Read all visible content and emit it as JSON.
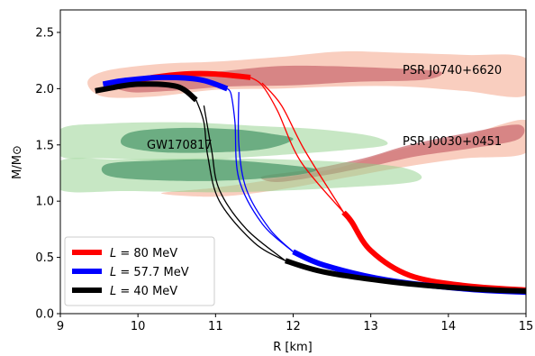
{
  "chart_data": {
    "type": "line",
    "title": "",
    "xlabel": "R [km]",
    "ylabel": "M/M⊙",
    "xlim": [
      9,
      15
    ],
    "ylim": [
      0,
      2.7
    ],
    "xticks": [
      "9",
      "10",
      "11",
      "12",
      "13",
      "14",
      "15"
    ],
    "yticks": [
      "0.0",
      "0.5",
      "1.0",
      "1.5",
      "2.0",
      "2.5"
    ],
    "grid": false,
    "legend_position": "lower-left",
    "annotations": [
      "PSR J0740+6620",
      "PSR J0030+0451",
      "GW170817"
    ],
    "series": [
      {
        "name": "L = 80 MeV",
        "legend_prefix": "L",
        "legend_suffix": " = 80 MeV",
        "color": "#ff0000",
        "thick": [
          [
            15.0,
            0.21
          ],
          [
            14.2,
            0.25
          ],
          [
            13.5,
            0.34
          ],
          [
            13.0,
            0.56
          ],
          [
            12.75,
            0.82
          ],
          [
            12.65,
            0.9
          ]
        ],
        "thin": [
          [
            12.65,
            0.9
          ],
          [
            12.1,
            1.35
          ],
          [
            11.8,
            1.8
          ],
          [
            11.6,
            2.03
          ],
          [
            11.45,
            2.1
          ]
        ],
        "top": [
          [
            11.45,
            2.1
          ],
          [
            11.0,
            2.13
          ],
          [
            10.6,
            2.13
          ],
          [
            10.2,
            2.1
          ],
          [
            9.9,
            2.06
          ]
        ],
        "thin2": [
          [
            11.6,
            2.05
          ],
          [
            11.85,
            1.85
          ],
          [
            12.15,
            1.45
          ],
          [
            12.65,
            0.9
          ]
        ]
      },
      {
        "name": "L = 57.7 MeV",
        "legend_prefix": "L",
        "legend_suffix": " = 57.7 MeV",
        "color": "#0000ff",
        "thick": [
          [
            15.0,
            0.19
          ],
          [
            14.2,
            0.22
          ],
          [
            13.2,
            0.3
          ],
          [
            12.4,
            0.43
          ],
          [
            12.0,
            0.55
          ]
        ],
        "thin": [
          [
            12.0,
            0.55
          ],
          [
            11.6,
            0.8
          ],
          [
            11.3,
            1.2
          ],
          [
            11.25,
            1.7
          ],
          [
            11.2,
            1.95
          ],
          [
            11.15,
            2.0
          ]
        ],
        "top": [
          [
            11.15,
            2.0
          ],
          [
            10.8,
            2.08
          ],
          [
            10.3,
            2.1
          ],
          [
            9.8,
            2.07
          ],
          [
            9.55,
            2.04
          ]
        ],
        "thin2": [
          [
            11.3,
            1.97
          ],
          [
            11.3,
            1.5
          ],
          [
            11.4,
            1.1
          ],
          [
            11.7,
            0.75
          ],
          [
            12.0,
            0.55
          ]
        ]
      },
      {
        "name": "L = 40 MeV",
        "legend_prefix": "L",
        "legend_suffix": " = 40 MeV",
        "color": "#000000",
        "thick": [
          [
            15.0,
            0.2
          ],
          [
            14.3,
            0.22
          ],
          [
            13.3,
            0.28
          ],
          [
            12.4,
            0.37
          ],
          [
            11.9,
            0.47
          ]
        ],
        "thin": [
          [
            11.9,
            0.47
          ],
          [
            11.5,
            0.63
          ],
          [
            11.05,
            1.0
          ],
          [
            10.9,
            1.4
          ],
          [
            10.85,
            1.7
          ],
          [
            10.75,
            1.9
          ]
        ],
        "top": [
          [
            10.75,
            1.9
          ],
          [
            10.5,
            2.02
          ],
          [
            10.0,
            2.04
          ],
          [
            9.6,
            2.0
          ],
          [
            9.45,
            1.98
          ]
        ],
        "thin2": [
          [
            10.85,
            1.85
          ],
          [
            10.95,
            1.45
          ],
          [
            11.05,
            1.1
          ],
          [
            11.4,
            0.75
          ],
          [
            11.9,
            0.47
          ]
        ]
      }
    ],
    "regions": [
      {
        "name": "psr-j0740-outer",
        "color": "#f4a58a",
        "opacity": 0.55,
        "points": [
          [
            9.35,
            2.06
          ],
          [
            9.6,
            2.16
          ],
          [
            10.3,
            2.22
          ],
          [
            11.0,
            2.24
          ],
          [
            11.8,
            2.28
          ],
          [
            12.6,
            2.33
          ],
          [
            13.3,
            2.32
          ],
          [
            14.2,
            2.3
          ],
          [
            15.0,
            2.27
          ],
          [
            15.0,
            1.94
          ],
          [
            14.2,
            1.98
          ],
          [
            13.4,
            2.02
          ],
          [
            12.6,
            2.02
          ],
          [
            11.8,
            2.0
          ],
          [
            11.0,
            1.99
          ],
          [
            10.2,
            1.93
          ],
          [
            9.55,
            1.93
          ]
        ]
      },
      {
        "name": "psr-j0740-inner",
        "color": "#c9676c",
        "opacity": 0.7,
        "points": [
          [
            9.7,
            2.04
          ],
          [
            10.3,
            2.12
          ],
          [
            11.0,
            2.15
          ],
          [
            11.8,
            2.2
          ],
          [
            12.5,
            2.2
          ],
          [
            13.3,
            2.18
          ],
          [
            13.9,
            2.15
          ],
          [
            13.7,
            2.08
          ],
          [
            12.8,
            2.06
          ],
          [
            12.0,
            2.03
          ],
          [
            11.2,
            2.02
          ],
          [
            10.4,
            1.98
          ],
          [
            9.9,
            1.97
          ]
        ]
      },
      {
        "name": "psr-j0030-outer",
        "color": "#f4a58a",
        "opacity": 0.55,
        "points": [
          [
            10.3,
            1.07
          ],
          [
            11.0,
            1.12
          ],
          [
            11.8,
            1.2
          ],
          [
            12.6,
            1.3
          ],
          [
            13.3,
            1.45
          ],
          [
            14.2,
            1.58
          ],
          [
            15.0,
            1.72
          ],
          [
            15.0,
            1.43
          ],
          [
            14.2,
            1.38
          ],
          [
            13.4,
            1.3
          ],
          [
            12.6,
            1.2
          ],
          [
            11.8,
            1.1
          ],
          [
            11.0,
            1.04
          ]
        ]
      },
      {
        "name": "psr-j0030-inner",
        "color": "#c9676c",
        "opacity": 0.7,
        "points": [
          [
            11.6,
            1.22
          ],
          [
            12.2,
            1.28
          ],
          [
            12.9,
            1.38
          ],
          [
            13.5,
            1.5
          ],
          [
            14.2,
            1.6
          ],
          [
            14.9,
            1.68
          ],
          [
            14.9,
            1.55
          ],
          [
            14.3,
            1.47
          ],
          [
            13.6,
            1.4
          ],
          [
            13.0,
            1.31
          ],
          [
            12.4,
            1.23
          ],
          [
            11.8,
            1.17
          ]
        ]
      },
      {
        "name": "gw170817-outer-upper",
        "color": "#8fd08a",
        "opacity": 0.5,
        "points": [
          [
            9.0,
            1.64
          ],
          [
            9.6,
            1.69
          ],
          [
            10.6,
            1.7
          ],
          [
            11.5,
            1.67
          ],
          [
            12.3,
            1.64
          ],
          [
            13.0,
            1.58
          ],
          [
            13.2,
            1.5
          ],
          [
            12.6,
            1.45
          ],
          [
            11.6,
            1.4
          ],
          [
            10.6,
            1.36
          ],
          [
            9.6,
            1.38
          ],
          [
            9.0,
            1.4
          ]
        ]
      },
      {
        "name": "gw170817-outer-lower",
        "color": "#8fd08a",
        "opacity": 0.5,
        "points": [
          [
            9.0,
            1.36
          ],
          [
            9.8,
            1.37
          ],
          [
            11.0,
            1.38
          ],
          [
            12.3,
            1.36
          ],
          [
            13.4,
            1.3
          ],
          [
            13.6,
            1.18
          ],
          [
            12.6,
            1.12
          ],
          [
            11.2,
            1.08
          ],
          [
            9.9,
            1.09
          ],
          [
            9.0,
            1.1
          ]
        ]
      },
      {
        "name": "gw170817-inner-upper",
        "color": "#4d9a6c",
        "opacity": 0.75,
        "points": [
          [
            9.9,
            1.61
          ],
          [
            10.5,
            1.65
          ],
          [
            11.2,
            1.64
          ],
          [
            11.7,
            1.6
          ],
          [
            12.0,
            1.55
          ],
          [
            11.6,
            1.46
          ],
          [
            10.8,
            1.43
          ],
          [
            10.2,
            1.44
          ],
          [
            9.8,
            1.5
          ]
        ]
      },
      {
        "name": "gw170817-inner-lower",
        "color": "#4d9a6c",
        "opacity": 0.75,
        "points": [
          [
            9.6,
            1.33
          ],
          [
            10.2,
            1.36
          ],
          [
            11.0,
            1.37
          ],
          [
            11.8,
            1.33
          ],
          [
            12.3,
            1.28
          ],
          [
            11.9,
            1.22
          ],
          [
            11.0,
            1.18
          ],
          [
            10.1,
            1.19
          ],
          [
            9.6,
            1.23
          ]
        ]
      }
    ]
  }
}
